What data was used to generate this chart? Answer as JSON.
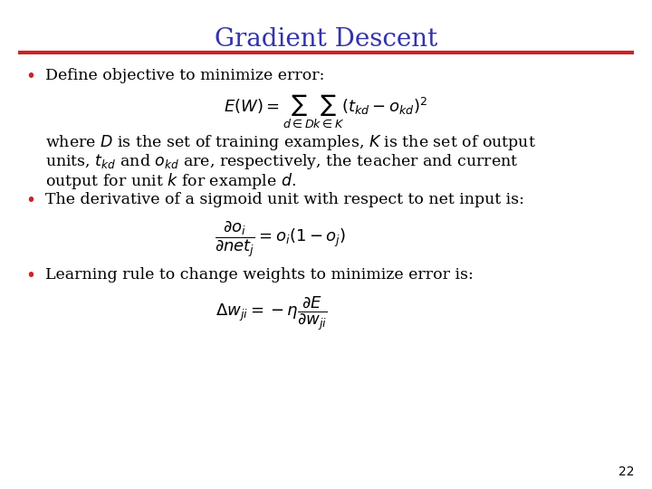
{
  "title": "Gradient Descent",
  "title_color": "#3333AA",
  "title_fontsize": 20,
  "line_color": "#CC2222",
  "background_color": "#FFFFFF",
  "bullet_color": "#CC2222",
  "text_color": "#000000",
  "slide_number": "22",
  "bullet1_text": "Define objective to minimize error:",
  "formula1": "$E(W) = \\sum_{d \\in D} \\sum_{k \\in K} (t_{kd} - o_{kd})^2$",
  "para_text_line1": "where $D$ is the set of training examples, $K$ is the set of output",
  "para_text_line2": "units, $t_{kd}$ and $o_{kd}$ are, respectively, the teacher and current",
  "para_text_line3": "output for unit $k$ for example $d$.",
  "bullet2_text": "The derivative of a sigmoid unit with respect to net input is:",
  "formula2": "$\\dfrac{\\partial o_i}{\\partial net_j} = o_i(1 - o_j)$",
  "bullet3_text": "Learning rule to change weights to minimize error is:",
  "formula3": "$\\Delta w_{ji} = -\\eta \\dfrac{\\partial E}{\\partial w_{ji}}$",
  "body_fontsize": 12.5,
  "formula_fontsize": 13
}
